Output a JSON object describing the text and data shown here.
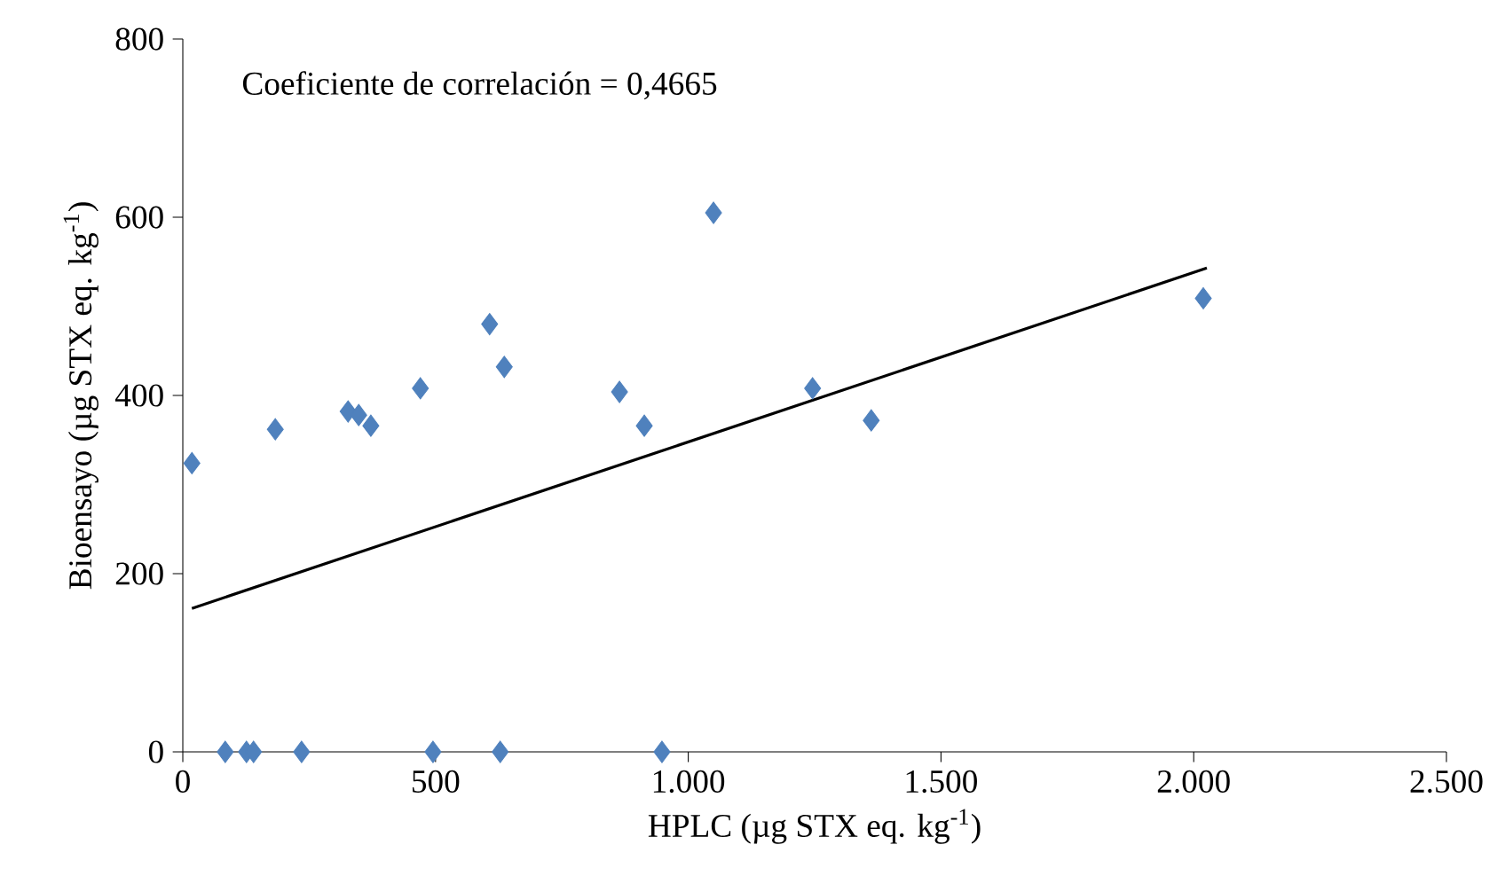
{
  "chart_data": {
    "type": "scatter",
    "xlabel": "HPLC (µg STX eq. kg$^{-1}$)",
    "ylabel": "Bioensayo (µg STX eq. kg$^{-1}$)",
    "annotations": [
      "Coeficiente de correlación = 0,4665"
    ],
    "series": [
      {
        "color": "#4f81bd",
        "marker": "diamond",
        "x": [
          18,
          183,
          327,
          348,
          372,
          470,
          607,
          636,
          864,
          913,
          1050,
          1246,
          1362,
          2019,
          84,
          126,
          140,
          235,
          495,
          628,
          948
        ],
        "values": [
          324,
          362,
          382,
          378,
          366,
          408,
          480,
          432,
          404,
          366,
          605,
          408,
          372,
          509,
          0,
          0,
          0,
          0,
          0,
          0,
          0
        ]
      },
      {
        "type": "line",
        "marker": "none",
        "color": "#000000",
        "x": [
          18,
          2026
        ],
        "values": [
          161,
          543
        ]
      }
    ],
    "grid": false,
    "xlim": [
      0,
      2500
    ],
    "ylim": [
      0,
      800
    ],
    "xticks": [
      0,
      500,
      {
        "value": 1000,
        "label": "1.000"
      },
      {
        "value": 1500,
        "label": "1.500"
      },
      {
        "value": 2000,
        "label": "2.000"
      },
      {
        "value": 2500,
        "label": "2.500"
      }
    ],
    "yticks": [
      0,
      200,
      400,
      600,
      800
    ]
  }
}
